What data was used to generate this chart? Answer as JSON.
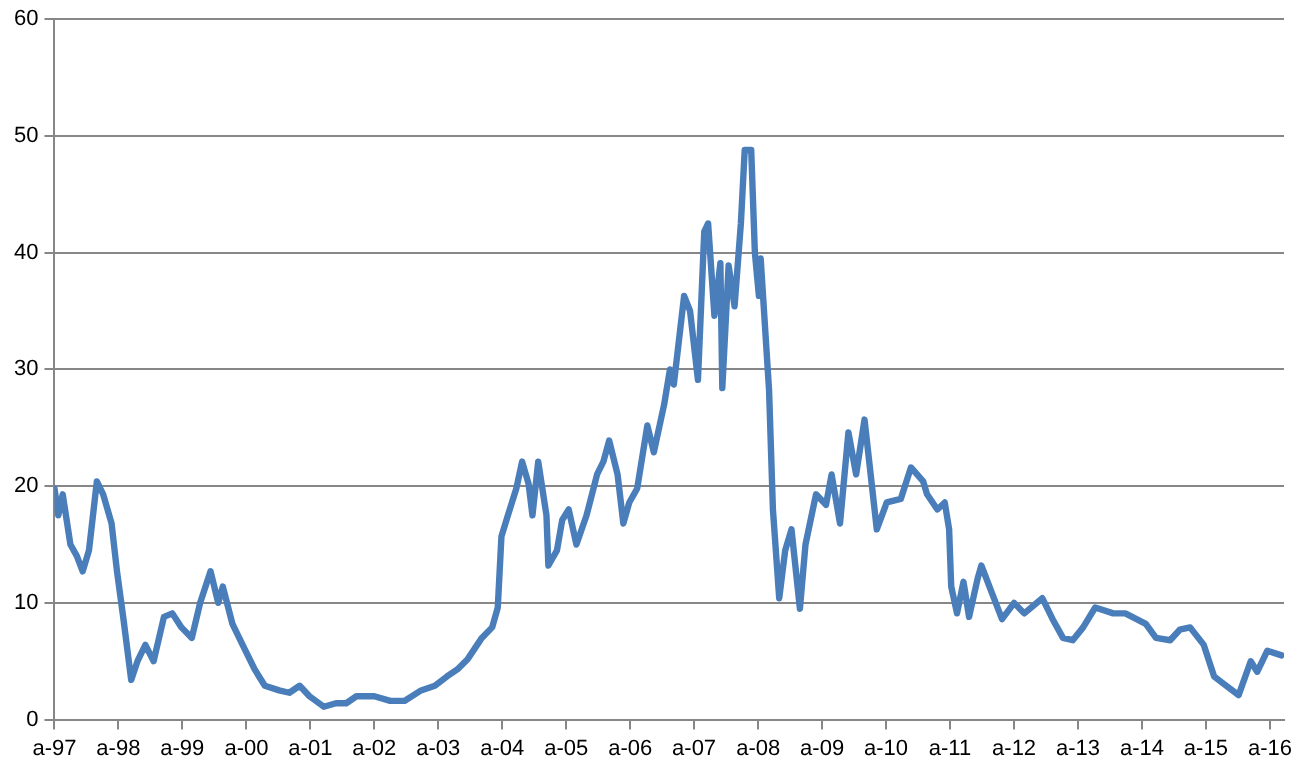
{
  "chart_data": {
    "type": "line",
    "grid": "y",
    "legend": false,
    "marker": "none",
    "line_style": "solid",
    "xlim": [
      "1997-04-01",
      "2016-06-20"
    ],
    "xticks": [
      {
        "value": "1997-04-01",
        "label": "a-97"
      },
      {
        "value": "1998-04-01",
        "label": "a-98"
      },
      {
        "value": "1999-04-01",
        "label": "a-99"
      },
      {
        "value": "2000-04-01",
        "label": "a-00"
      },
      {
        "value": "2001-04-01",
        "label": "a-01"
      },
      {
        "value": "2002-04-01",
        "label": "a-02"
      },
      {
        "value": "2003-04-01",
        "label": "a-03"
      },
      {
        "value": "2004-04-01",
        "label": "a-04"
      },
      {
        "value": "2005-04-01",
        "label": "a-05"
      },
      {
        "value": "2006-04-01",
        "label": "a-06"
      },
      {
        "value": "2007-04-01",
        "label": "a-07"
      },
      {
        "value": "2008-04-01",
        "label": "a-08"
      },
      {
        "value": "2009-04-01",
        "label": "a-09"
      },
      {
        "value": "2010-04-01",
        "label": "a-10"
      },
      {
        "value": "2011-04-01",
        "label": "a-11"
      },
      {
        "value": "2012-04-01",
        "label": "a-12"
      },
      {
        "value": "2013-04-01",
        "label": "a-13"
      },
      {
        "value": "2014-04-01",
        "label": "a-14"
      },
      {
        "value": "2015-04-01",
        "label": "a-15"
      },
      {
        "value": "2016-04-01",
        "label": "a-16"
      }
    ],
    "ylim": [
      0,
      60
    ],
    "yticks": [
      0,
      10,
      20,
      30,
      40,
      50,
      60
    ],
    "series": [
      {
        "color": "#4a7ebb",
        "x": [
          "1997-04-01",
          "1997-04-23",
          "1997-05-18",
          "1997-07-01",
          "1997-08-07",
          "1997-09-09",
          "1997-10-15",
          "1997-11-29",
          "1998-01-04",
          "1998-02-21",
          "1998-03-24",
          "1998-04-30",
          "1998-06-13",
          "1998-07-19",
          "1998-09-02",
          "1998-10-19",
          "1998-12-17",
          "1999-02-03",
          "1999-03-27",
          "1999-05-25",
          "1999-07-12",
          "1999-09-09",
          "1999-10-23",
          "1999-11-18",
          "2000-01-12",
          "2000-03-20",
          "2000-05-18",
          "2000-07-15",
          "2000-10-05",
          "2000-12-02",
          "2001-01-30",
          "2001-03-27",
          "2001-06-17",
          "2001-08-25",
          "2001-10-23",
          "2001-12-20",
          "2002-04-01",
          "2002-07-01",
          "2002-09-20",
          "2002-12-24",
          "2003-03-13",
          "2003-05-21",
          "2003-07-19",
          "2003-09-17",
          "2003-12-06",
          "2004-02-03",
          "2004-03-06",
          "2004-03-27",
          "2004-05-03",
          "2004-06-20",
          "2004-07-23",
          "2004-08-29",
          "2004-09-20",
          "2004-10-23",
          "2004-12-09",
          "2004-12-20",
          "2005-02-07",
          "2005-03-09",
          "2005-04-15",
          "2005-05-29",
          "2005-07-26",
          "2005-09-24",
          "2005-10-30",
          "2005-12-02",
          "2006-01-19",
          "2006-02-21",
          "2006-03-27",
          "2006-05-11",
          "2006-07-08",
          "2006-08-14",
          "2006-10-12",
          "2006-11-14",
          "2006-12-06",
          "2007-02-03",
          "2007-03-09",
          "2007-04-23",
          "2007-05-29",
          "2007-06-20",
          "2007-07-26",
          "2007-08-29",
          "2007-09-09",
          "2007-10-15",
          "2007-11-18",
          "2007-12-24",
          "2008-01-15",
          "2008-02-21",
          "2008-03-13",
          "2008-04-05",
          "2008-04-15",
          "2008-06-02",
          "2008-06-24",
          "2008-07-30",
          "2008-09-02",
          "2008-10-08",
          "2008-11-25",
          "2008-12-27",
          "2009-02-25",
          "2009-04-23",
          "2009-05-25",
          "2009-07-12",
          "2009-08-29",
          "2009-10-12",
          "2009-11-29",
          "2010-02-07",
          "2010-04-05",
          "2010-06-24",
          "2010-08-21",
          "2010-10-30",
          "2010-11-21",
          "2011-01-19",
          "2011-03-02",
          "2011-03-27",
          "2011-04-08",
          "2011-05-11",
          "2011-06-17",
          "2011-07-19",
          "2011-09-06",
          "2011-09-27",
          "2011-11-25",
          "2012-01-23",
          "2012-04-01",
          "2012-05-29",
          "2012-09-09",
          "2012-11-07",
          "2013-01-05",
          "2013-03-02",
          "2013-04-30",
          "2013-07-08",
          "2013-10-19",
          "2013-12-27",
          "2014-04-23",
          "2014-06-20",
          "2014-09-09",
          "2014-11-03",
          "2015-01-01",
          "2015-03-20",
          "2015-05-18",
          "2015-07-26",
          "2015-10-05",
          "2015-12-13",
          "2016-01-19",
          "2016-03-17",
          "2016-06-06"
        ],
        "values": [
          19.8,
          17.5,
          19.3,
          15,
          14,
          12.7,
          14.5,
          20.4,
          19.3,
          16.8,
          12.7,
          8.6,
          3.4,
          5,
          6.4,
          5,
          8.8,
          9.1,
          7.9,
          7,
          10,
          12.7,
          10,
          11.4,
          8.2,
          6.1,
          4.3,
          2.9,
          2.5,
          2.3,
          2.9,
          2,
          1.1,
          1.4,
          1.4,
          2,
          2,
          1.6,
          1.6,
          2.5,
          2.9,
          3.7,
          4.3,
          5.2,
          7,
          7.9,
          9.6,
          15.7,
          17.5,
          19.8,
          22.1,
          20.2,
          17.5,
          22.1,
          17.5,
          13.2,
          14.5,
          17.1,
          18,
          15,
          17.5,
          21,
          22.1,
          23.9,
          21,
          16.8,
          18.6,
          19.8,
          25.2,
          22.9,
          27,
          30,
          28.7,
          36.3,
          35,
          29.1,
          41.8,
          42.5,
          34.6,
          39.1,
          28.4,
          38.9,
          35.4,
          42.5,
          48.8,
          48.8,
          40,
          36.3,
          39.5,
          28.2,
          18,
          10.4,
          14.5,
          16.3,
          9.5,
          15,
          19.3,
          18.4,
          21,
          16.8,
          24.6,
          21,
          25.7,
          16.3,
          18.6,
          18.9,
          21.6,
          20.4,
          19.3,
          18,
          18.6,
          16.3,
          11.4,
          9.1,
          11.8,
          8.8,
          12.1,
          13.2,
          10.9,
          8.6,
          10,
          9.1,
          10.4,
          8.6,
          7,
          6.8,
          7.9,
          9.6,
          9.1,
          9.1,
          8.2,
          7,
          6.8,
          7.7,
          7.9,
          6.4,
          3.7,
          2.9,
          2.1,
          5,
          4.1,
          5.9,
          5.5
        ]
      }
    ]
  }
}
